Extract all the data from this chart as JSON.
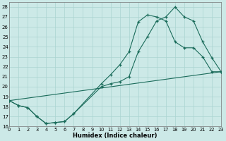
{
  "xlabel": "Humidex (Indice chaleur)",
  "bg_color": "#cce9e7",
  "grid_color": "#aad4d1",
  "line_color": "#1a6b5a",
  "line1_x": [
    0,
    1,
    2,
    3,
    4,
    5,
    6,
    7,
    10,
    11,
    12,
    13,
    14,
    15,
    16,
    17,
    18,
    19,
    20,
    21,
    22,
    23
  ],
  "line1_y": [
    18.6,
    18.1,
    17.9,
    17.0,
    16.3,
    16.4,
    16.5,
    17.3,
    20.3,
    21.2,
    22.2,
    23.5,
    26.5,
    27.2,
    27.0,
    26.6,
    24.5,
    23.9,
    23.9,
    23.0,
    21.5,
    21.5
  ],
  "line2_x": [
    0,
    1,
    2,
    3,
    4,
    5,
    6,
    7,
    10,
    11,
    12,
    13,
    14,
    15,
    16,
    17,
    18,
    19,
    20,
    21,
    22,
    23
  ],
  "line2_y": [
    18.6,
    18.1,
    17.9,
    17.0,
    16.3,
    16.4,
    16.5,
    17.3,
    20.0,
    20.3,
    20.5,
    21.0,
    23.5,
    25.0,
    26.6,
    27.0,
    28.0,
    27.0,
    26.6,
    24.5,
    22.9,
    21.5
  ],
  "line3_x": [
    0,
    23
  ],
  "line3_y": [
    18.6,
    21.5
  ],
  "xlim": [
    0,
    23
  ],
  "ylim": [
    16,
    28.5
  ],
  "yticks": [
    16,
    17,
    18,
    19,
    20,
    21,
    22,
    23,
    24,
    25,
    26,
    27,
    28
  ],
  "xticks": [
    0,
    1,
    2,
    3,
    4,
    5,
    6,
    7,
    8,
    9,
    10,
    11,
    12,
    13,
    14,
    15,
    16,
    17,
    18,
    19,
    20,
    21,
    22,
    23
  ]
}
